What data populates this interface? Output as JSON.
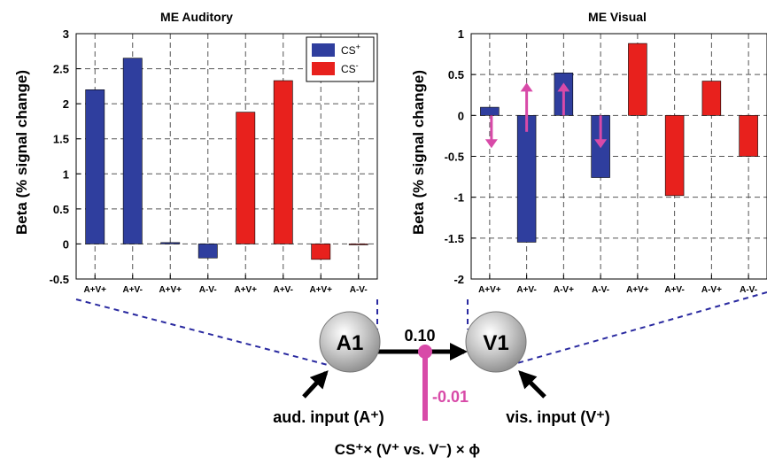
{
  "chart_data": [
    {
      "type": "bar",
      "title": "ME Auditory",
      "ylabel": "Beta (% signal change)",
      "ylim": [
        -0.5,
        3
      ],
      "yticks": [
        -0.5,
        0,
        0.5,
        1,
        1.5,
        2,
        2.5,
        3
      ],
      "categories": [
        "A+V+",
        "A+V-",
        "A+V+",
        "A-V-",
        "A+V+",
        "A+V-",
        "A+V+",
        "A-V-"
      ],
      "values": [
        2.2,
        2.65,
        0.02,
        -0.2,
        1.88,
        2.33,
        -0.22,
        0.0
      ],
      "bar_colors": [
        "#2f3e9e",
        "#2f3e9e",
        "#2f3e9e",
        "#2f3e9e",
        "#e8211d",
        "#e8211d",
        "#e8211d",
        "#e8211d"
      ],
      "legend": [
        {
          "label": "CS",
          "sup": "+",
          "color": "#2f3e9e"
        },
        {
          "label": "CS",
          "sup": "-",
          "color": "#e8211d"
        }
      ],
      "legend_position": "top-right",
      "grid": true
    },
    {
      "type": "bar",
      "title": "ME Visual",
      "ylabel": "Beta (% signal change)",
      "ylim": [
        -2,
        1
      ],
      "yticks": [
        -2,
        -1.5,
        -1,
        -0.5,
        0,
        0.5,
        1
      ],
      "categories": [
        "A+V+",
        "A+V-",
        "A-V+",
        "A-V-",
        "A+V+",
        "A+V-",
        "A-V+",
        "A-V-"
      ],
      "values": [
        0.1,
        -1.55,
        0.52,
        -0.76,
        0.88,
        -0.98,
        0.42,
        -0.5
      ],
      "bar_colors": [
        "#2f3e9e",
        "#2f3e9e",
        "#2f3e9e",
        "#2f3e9e",
        "#e8211d",
        "#e8211d",
        "#e8211d",
        "#e8211d"
      ],
      "arrows": [
        {
          "category_index": 0,
          "from": 0.0,
          "to": -0.4,
          "color": "#d84aa8"
        },
        {
          "category_index": 1,
          "from": -0.2,
          "to": 0.4,
          "color": "#d84aa8"
        },
        {
          "category_index": 2,
          "from": 0.0,
          "to": 0.4,
          "color": "#d84aa8"
        },
        {
          "category_index": 3,
          "from": 0.0,
          "to": -0.4,
          "color": "#d84aa8"
        }
      ],
      "grid": true
    }
  ],
  "diagram": {
    "node_a": "A1",
    "node_v": "V1",
    "connection_value": "0.10",
    "modulation_value": "-0.01",
    "aud_input_label": "aud. input (A⁺)",
    "vis_input_label": "vis. input (V⁺)",
    "bottom_formula": "CS⁺× (V⁺ vs. V⁻) × ϕ",
    "colors": {
      "modulation": "#d84aa8",
      "dashed": "#2a2aa0",
      "arrow": "#000000"
    }
  }
}
